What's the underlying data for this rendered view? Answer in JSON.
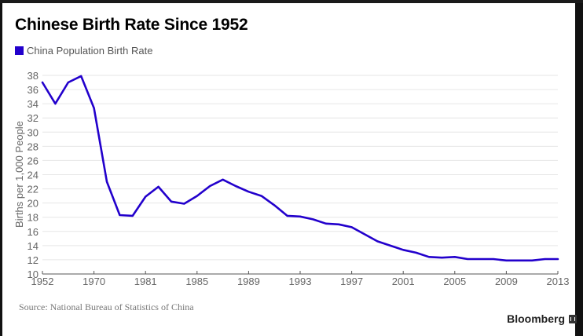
{
  "title": "Chinese Birth Rate Since 1952",
  "legend": [
    {
      "label": "China Population Birth Rate",
      "color": "#2200cc"
    }
  ],
  "source": "Source: National Bureau of Statistics of China",
  "brand": "Bloomberg",
  "chart_data": {
    "type": "line",
    "title": "Chinese Birth Rate Since 1952",
    "xlabel": "",
    "ylabel": "Births per 1,000 People",
    "ylim": [
      10,
      38
    ],
    "yticks": [
      10,
      12,
      14,
      16,
      18,
      20,
      22,
      24,
      26,
      28,
      30,
      32,
      34,
      36,
      38
    ],
    "xtick_labels": [
      "1952",
      "1970",
      "1981",
      "1985",
      "1989",
      "1993",
      "1997",
      "2001",
      "2005",
      "2009",
      "2013"
    ],
    "xtick_every_n_points": 4,
    "grid": true,
    "legend_position": "top-left",
    "series": [
      {
        "name": "China Population Birth Rate",
        "color": "#2200cc",
        "values": [
          37.0,
          34.0,
          37.0,
          37.9,
          33.4,
          23.0,
          18.3,
          18.2,
          20.9,
          22.3,
          20.2,
          19.9,
          21.0,
          22.4,
          23.3,
          22.4,
          21.6,
          21.0,
          19.7,
          18.2,
          18.1,
          17.7,
          17.1,
          17.0,
          16.6,
          15.6,
          14.6,
          14.0,
          13.4,
          13.0,
          12.4,
          12.3,
          12.4,
          12.1,
          12.1,
          12.1,
          11.9,
          11.9,
          11.9,
          12.1,
          12.1
        ]
      }
    ]
  }
}
